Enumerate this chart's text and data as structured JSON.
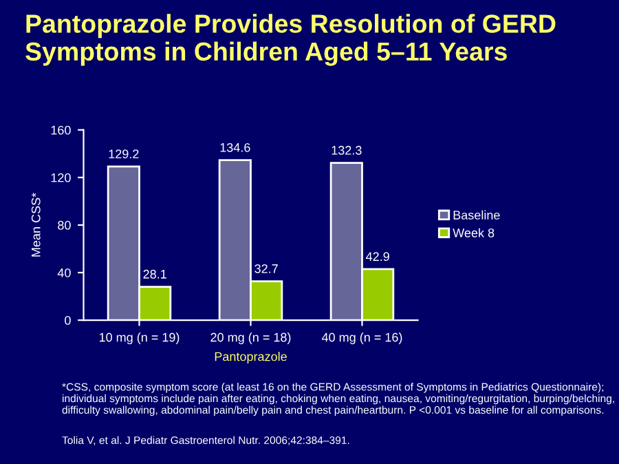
{
  "chart_data": {
    "type": "bar",
    "title": "Pantoprazole Provides Resolution of GERD Symptoms in Children Aged 5–11 Years",
    "xlabel": "Pantoprazole",
    "ylabel": "Mean CSS*",
    "categories": [
      "10 mg (n = 19)",
      "20 mg (n = 18)",
      "40 mg (n = 16)"
    ],
    "series": [
      {
        "name": "Baseline",
        "color": "#666699",
        "values": [
          129.2,
          134.6,
          132.3
        ]
      },
      {
        "name": "Week 8",
        "color": "#99cc00",
        "values": [
          28.1,
          32.7,
          42.9
        ]
      }
    ],
    "ylim": [
      0,
      160
    ],
    "yticks": [
      0,
      40,
      80,
      120,
      160
    ],
    "data_labels": true,
    "legend": "right",
    "grid": false,
    "annotations": [
      "*CSS, composite symptom score (at least 16 on the GERD Assessment of Symptoms in Pediatrics Questionnaire); individual symptoms include pain after eating, choking when eating, nausea, vomiting/regurgitation, burping/belching, difficulty swallowing, abdominal pain/belly pain and chest pain/heartburn. P <0.001 vs baseline for all comparisons.",
      "Tolia V, et al. J Pediatr Gastroenterol Nutr. 2006;42:384–391."
    ]
  }
}
